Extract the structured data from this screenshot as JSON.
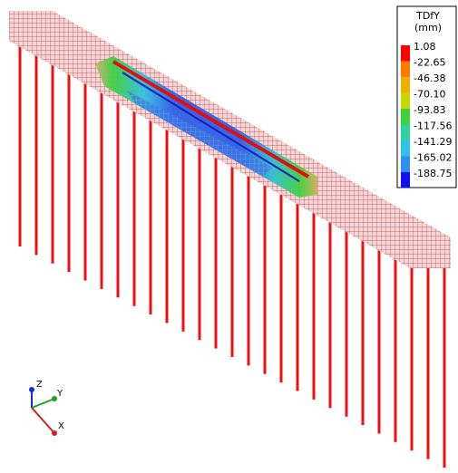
{
  "legend": {
    "title": "TDfY",
    "unit": "(mm)",
    "labels": [
      "1.08",
      "-22.65",
      "-46.38",
      "-70.10",
      "-93.83",
      "-117.56",
      "-141.29",
      "-165.02",
      "-188.75"
    ]
  },
  "triad": {
    "z": "Z",
    "y": "Y",
    "x": "X"
  }
}
